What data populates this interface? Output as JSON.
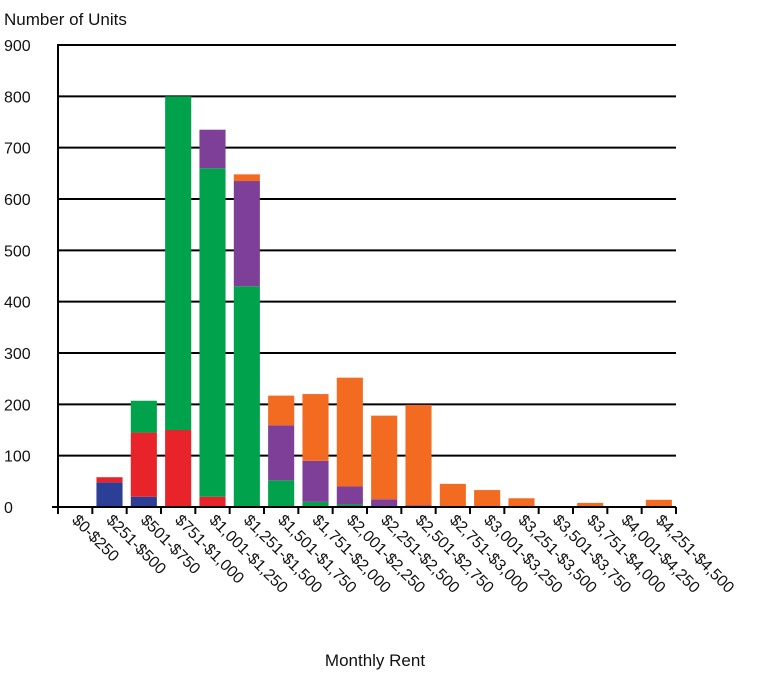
{
  "chart_data": {
    "type": "bar",
    "stacked": true,
    "ylabel": "Number of Units",
    "xlabel": "Monthly Rent",
    "ylim": [
      0,
      900
    ],
    "yticks": [
      0,
      100,
      200,
      300,
      400,
      500,
      600,
      700,
      800,
      900
    ],
    "grid": true,
    "categories": [
      "$0-$250",
      "$251-$500",
      "$501-$750",
      "$751-$1,000",
      "$1,001-$1,250",
      "$1,251-$1,500",
      "$1,501-$1,750",
      "$1,751-$2,000",
      "$2,001-$2,250",
      "$2,251-$2,500",
      "$2,501-$2,750",
      "$2,751-$3,000",
      "$3,001-$3,250",
      "$3,251-$3,500",
      "$3,501-$3,750",
      "$3,751-$4,000",
      "$4,001-$4,250",
      "$4,251-$4,500"
    ],
    "series": [
      {
        "color": "#2b3f97",
        "values": [
          0,
          48,
          20,
          0,
          0,
          0,
          0,
          0,
          0,
          0,
          0,
          0,
          0,
          0,
          0,
          0,
          0,
          0
        ]
      },
      {
        "color": "#e8232a",
        "values": [
          0,
          10,
          125,
          150,
          20,
          0,
          0,
          0,
          0,
          0,
          0,
          0,
          0,
          0,
          0,
          0,
          0,
          0
        ]
      },
      {
        "color": "#00a24b",
        "values": [
          0,
          0,
          62,
          650,
          640,
          430,
          52,
          10,
          5,
          0,
          0,
          0,
          0,
          0,
          0,
          0,
          0,
          0
        ]
      },
      {
        "color": "#7d3f98",
        "values": [
          0,
          0,
          0,
          0,
          75,
          205,
          107,
          80,
          35,
          15,
          3,
          0,
          0,
          0,
          0,
          0,
          0,
          0
        ]
      },
      {
        "color": "#f26b21",
        "values": [
          0,
          0,
          0,
          0,
          0,
          13,
          58,
          130,
          212,
          163,
          196,
          45,
          33,
          17,
          0,
          8,
          0,
          14
        ]
      }
    ]
  }
}
